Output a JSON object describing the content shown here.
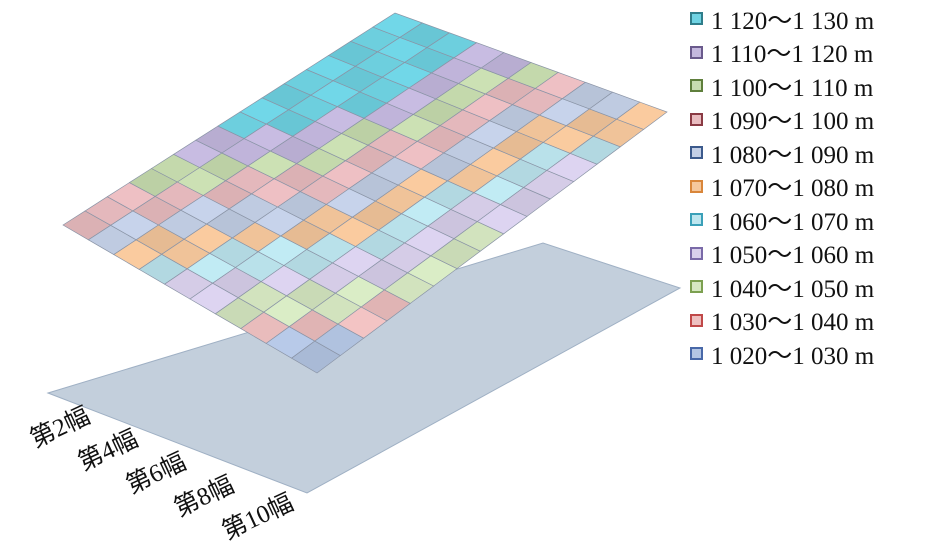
{
  "chart_data": {
    "type": "surface",
    "title": "",
    "unit": "m",
    "range_x": [
      "第2幅",
      "第4幅",
      "第6幅",
      "第8幅",
      "第10幅"
    ],
    "z_bands": [
      {
        "label": "1 120～1 130 m",
        "min": 1120,
        "max": 1130,
        "color": "#6fd3e3",
        "border": "#2f7d8a"
      },
      {
        "label": "1 110～1 120 m",
        "min": 1110,
        "max": 1120,
        "color": "#c4b8de",
        "border": "#6a5a8c"
      },
      {
        "label": "1 100～1 110 m",
        "min": 1100,
        "max": 1110,
        "color": "#c8ddb0",
        "border": "#5f7f3c"
      },
      {
        "label": "1 090～1 100 m",
        "min": 1090,
        "max": 1100,
        "color": "#e9bcc0",
        "border": "#8a3a44"
      },
      {
        "label": "1 080～1 090 m",
        "min": 1080,
        "max": 1090,
        "color": "#c3cfe6",
        "border": "#3c5a8c"
      },
      {
        "label": "1 070～1 080 m",
        "min": 1070,
        "max": 1080,
        "color": "#f5c79c",
        "border": "#d9863a"
      },
      {
        "label": "1 060～1 070 m",
        "min": 1060,
        "max": 1070,
        "color": "#bde6ef",
        "border": "#3aa0b8"
      },
      {
        "label": "1 050～1 060 m",
        "min": 1050,
        "max": 1060,
        "color": "#d9d0ec",
        "border": "#7a6aa8"
      },
      {
        "label": "1 040～1 050 m",
        "min": 1040,
        "max": 1050,
        "color": "#d6e8c2",
        "border": "#7ca050"
      },
      {
        "label": "1 030～1 040 m",
        "min": 1030,
        "max": 1040,
        "color": "#eec0c0",
        "border": "#c04848"
      },
      {
        "label": "1 020～1 030 m",
        "min": 1020,
        "max": 1030,
        "color": "#b4c6e4",
        "border": "#4868a8"
      }
    ]
  }
}
